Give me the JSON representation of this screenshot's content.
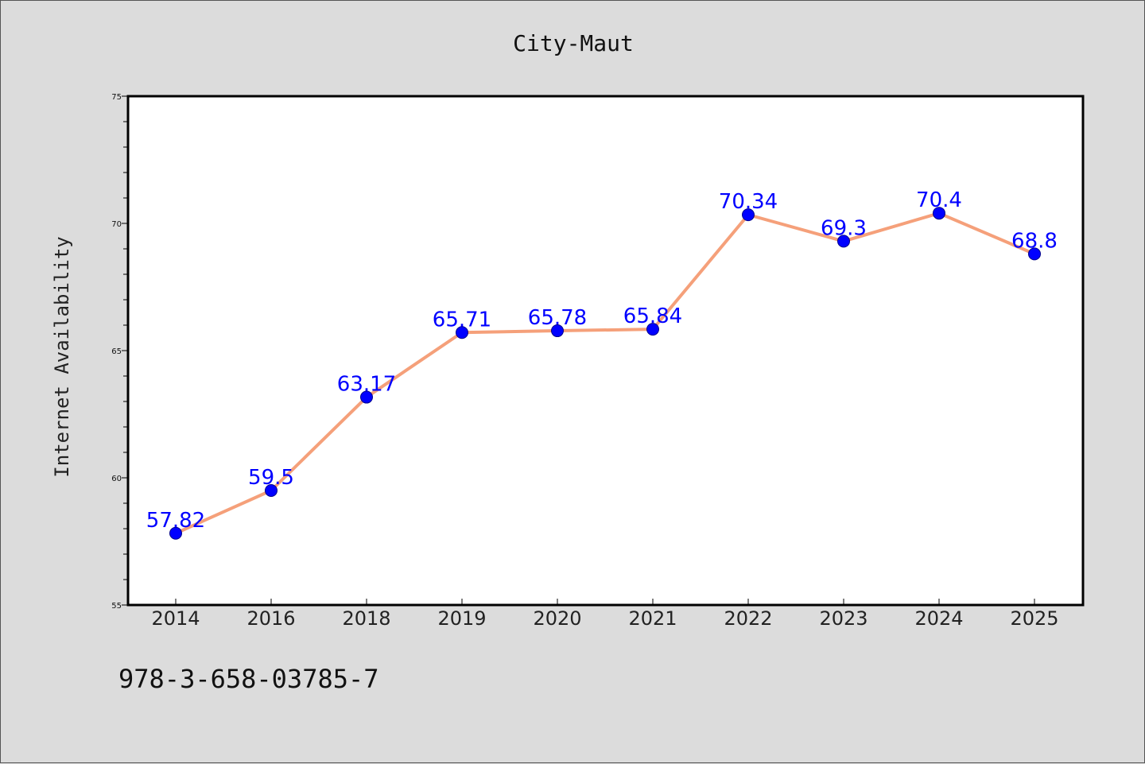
{
  "chart_data": {
    "type": "line",
    "title": "City-Maut",
    "xlabel": "",
    "ylabel": "Internet Availability",
    "categories": [
      "2014",
      "2016",
      "2018",
      "2019",
      "2020",
      "2021",
      "2022",
      "2023",
      "2024",
      "2025"
    ],
    "values": [
      57.82,
      59.5,
      63.17,
      65.71,
      65.78,
      65.84,
      70.34,
      69.3,
      70.4,
      68.8
    ],
    "data_labels": [
      "57.82",
      "59.5",
      "63.17",
      "65.71",
      "65.78",
      "65.84",
      "70.34",
      "69.3",
      "70.4",
      "68.8"
    ],
    "ylim": [
      55,
      75
    ],
    "yticks": [
      "55",
      "60",
      "65",
      "70",
      "75"
    ],
    "grid": false,
    "line_color": "#f5a07a",
    "marker_color": "#0000ff",
    "label_color": "#0000ff"
  },
  "footer": {
    "text": "978-3-658-03785-7"
  }
}
